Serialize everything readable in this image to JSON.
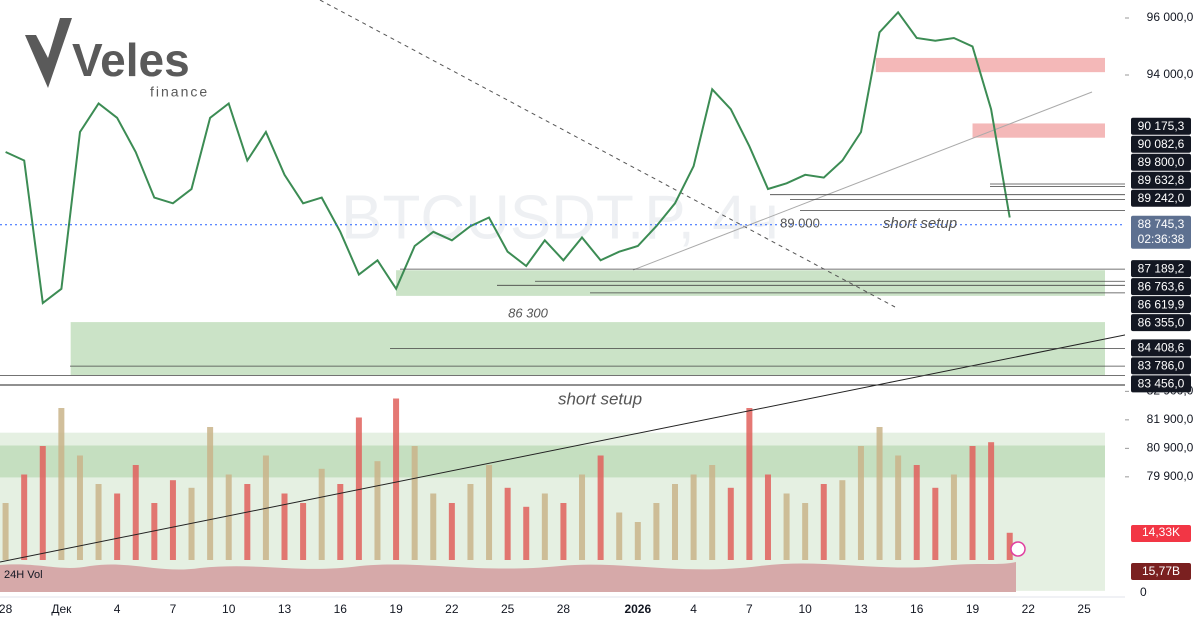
{
  "logo": {
    "name": "Veles",
    "sub": "finance"
  },
  "chart_data": {
    "type": "line",
    "watermark": "BTCUSDT.P, 4ч",
    "color": "#3c8c54",
    "x": [
      0,
      1,
      2,
      3,
      4,
      5,
      6,
      7,
      8,
      9,
      10,
      11,
      12,
      13,
      14,
      15,
      16,
      17,
      18,
      19,
      20,
      21,
      22,
      23,
      24,
      25,
      26,
      27,
      28,
      29,
      30,
      31,
      32,
      33,
      34,
      35,
      36,
      37,
      38,
      39,
      40,
      41,
      42,
      43,
      44,
      45,
      46,
      47,
      48,
      49,
      50,
      51,
      52,
      53,
      54
    ],
    "values": [
      91300,
      91000,
      86000,
      86500,
      92000,
      93000,
      92500,
      91300,
      89700,
      89500,
      90000,
      92500,
      93000,
      91000,
      92000,
      90500,
      89500,
      89700,
      88500,
      87000,
      87500,
      86500,
      88000,
      88500,
      88200,
      88700,
      89000,
      87800,
      87300,
      88200,
      87500,
      88300,
      87500,
      87800,
      88000,
      88700,
      89500,
      90800,
      93500,
      92800,
      91500,
      90000,
      90200,
      90500,
      90400,
      91000,
      92000,
      95500,
      96200,
      95300,
      95200,
      95300,
      95000,
      92800,
      89000
    ],
    "xlim": [
      -0.3,
      60.2
    ],
    "xticks": [
      {
        "value": 0,
        "label": "28"
      },
      {
        "value": 3,
        "label": "Дек"
      },
      {
        "value": 6,
        "label": "4"
      },
      {
        "value": 9,
        "label": "7"
      },
      {
        "value": 12,
        "label": "10"
      },
      {
        "value": 15,
        "label": "13"
      },
      {
        "value": 18,
        "label": "16"
      },
      {
        "value": 21,
        "label": "19"
      },
      {
        "value": 24,
        "label": "22"
      },
      {
        "value": 27,
        "label": "25"
      },
      {
        "value": 30,
        "label": "28"
      },
      {
        "value": 34,
        "label": "2026"
      },
      {
        "value": 37,
        "label": "4"
      },
      {
        "value": 40,
        "label": "7"
      },
      {
        "value": 43,
        "label": "10"
      },
      {
        "value": 46,
        "label": "13"
      },
      {
        "value": 49,
        "label": "16"
      },
      {
        "value": 52,
        "label": "19"
      },
      {
        "value": 55,
        "label": "22"
      },
      {
        "value": 58,
        "label": "25"
      }
    ],
    "ylim": [
      75684,
      96632
    ],
    "yticks": [
      {
        "value": 96000,
        "label": "96 000,0"
      },
      {
        "value": 94000,
        "label": "94 000,0"
      },
      {
        "value": 82900,
        "label": "82 900,0"
      },
      {
        "value": 81900,
        "label": "81 900,0"
      },
      {
        "value": 80900,
        "label": "80 900,0"
      },
      {
        "value": 79900,
        "label": "79 900,0"
      }
    ],
    "levels": [
      {
        "value": 90175.3,
        "label": "90 175,3"
      },
      {
        "value": 90082.6,
        "label": "90 082,6"
      },
      {
        "value": 89800,
        "label": "89 800,0"
      },
      {
        "value": 89632.8,
        "label": "89 632,8"
      },
      {
        "value": 89242,
        "label": "89 242,0"
      },
      {
        "value": 87189.2,
        "label": "87 189,2"
      },
      {
        "value": 86763.6,
        "label": "86 763,6"
      },
      {
        "value": 86619.9,
        "label": "86 619,9"
      },
      {
        "value": 86355,
        "label": "86 355,0"
      },
      {
        "value": 84408.6,
        "label": "84 408,6"
      },
      {
        "value": 83786,
        "label": "83 786,0"
      },
      {
        "value": 83456,
        "label": "83 456,0"
      }
    ],
    "current": {
      "price": {
        "value": 88745.3,
        "label": "88 745,3"
      },
      "countdown": "02:36:38"
    },
    "zones": [
      {
        "from": 94600,
        "to": 94100,
        "start": 46.8,
        "color": "#f0a0a0"
      },
      {
        "from": 92300,
        "to": 91800,
        "start": 52,
        "color": "#f0a0a0"
      },
      {
        "from": 87150,
        "to": 86250,
        "start": 21,
        "color": "#b9d9b4"
      },
      {
        "from": 85330,
        "to": 83470,
        "start": 3.5,
        "color": "#b9d9b4"
      },
      {
        "from": 81450,
        "to": 75900,
        "start": -0.3,
        "color": "#dcebd8"
      },
      {
        "from": 81000,
        "to": 79880,
        "start": -0.3,
        "color": "#b9d9b4"
      }
    ],
    "annotations": [
      "89 000",
      "short setup",
      "86 300",
      "short setup"
    ],
    "volume": {
      "title": "24H Vol",
      "values": [
        30,
        45,
        60,
        80,
        55,
        40,
        35,
        50,
        30,
        42,
        38,
        70,
        45,
        40,
        55,
        35,
        30,
        48,
        40,
        75,
        52,
        85,
        60,
        35,
        30,
        40,
        50,
        38,
        28,
        35,
        30,
        45,
        55,
        25,
        20,
        30,
        40,
        45,
        50,
        38,
        80,
        45,
        35,
        30,
        40,
        42,
        60,
        70,
        55,
        50,
        38,
        45,
        60,
        62,
        14.33
      ],
      "current": {
        "value": 14.33,
        "label": "14,33K"
      },
      "total_24h": {
        "value": 15.77,
        "label": "15,77B"
      },
      "ticks": [
        0
      ]
    }
  }
}
